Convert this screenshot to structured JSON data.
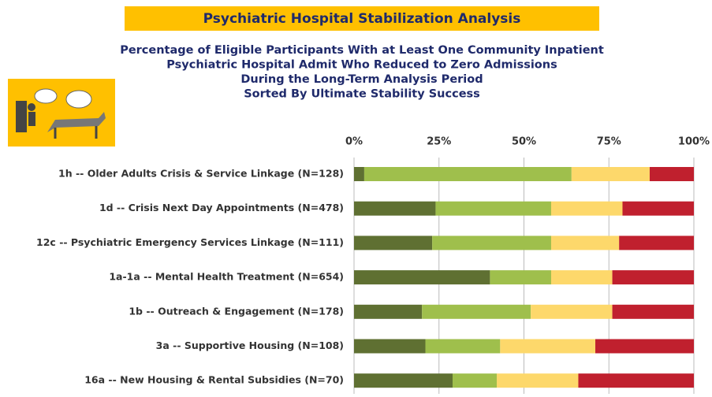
{
  "chart_data": {
    "type": "stacked-bar-horizontal",
    "title": "Psychiatric Hospital Stabilization Analysis",
    "subtitle": [
      "Percentage of Eligible Participants With at Least One Community Inpatient",
      "Psychiatric Hospital Admit Who Reduced to Zero Admissions",
      "During the Long-Term Analysis Period",
      "Sorted By Ultimate Stability Success"
    ],
    "categories": [
      "1h -- Older Adults Crisis & Service Linkage  (N=128)",
      "1d -- Crisis Next Day Appointments  (N=478)",
      "12c -- Psychiatric Emergency Services Linkage (N=111)",
      "1a-1a -- Mental Health Treatment (N=654)",
      "1b -- Outreach & Engagement (N=178)",
      "3a -- Supportive Housing (N=108)",
      "16a -- New Housing & Rental Subsidies (N=70)"
    ],
    "series": [
      {
        "color": "#5f7032",
        "values": [
          3,
          24,
          23,
          40,
          20,
          21,
          29
        ]
      },
      {
        "color": "#9fbf4c",
        "values": [
          61,
          34,
          35,
          18,
          32,
          22,
          13
        ]
      },
      {
        "color": "#fdd86b",
        "values": [
          23,
          21,
          20,
          18,
          24,
          28,
          24
        ]
      },
      {
        "color": "#c0202e",
        "values": [
          13,
          21,
          22,
          24,
          24,
          29,
          34
        ]
      }
    ],
    "xlim": [
      0,
      100
    ],
    "xticks": [
      {
        "value": 0,
        "label": "0%"
      },
      {
        "value": 25,
        "label": "25%"
      },
      {
        "value": 50,
        "label": "50%"
      },
      {
        "value": 75,
        "label": "75%"
      },
      {
        "value": 100,
        "label": "100%"
      }
    ],
    "grid": true
  }
}
